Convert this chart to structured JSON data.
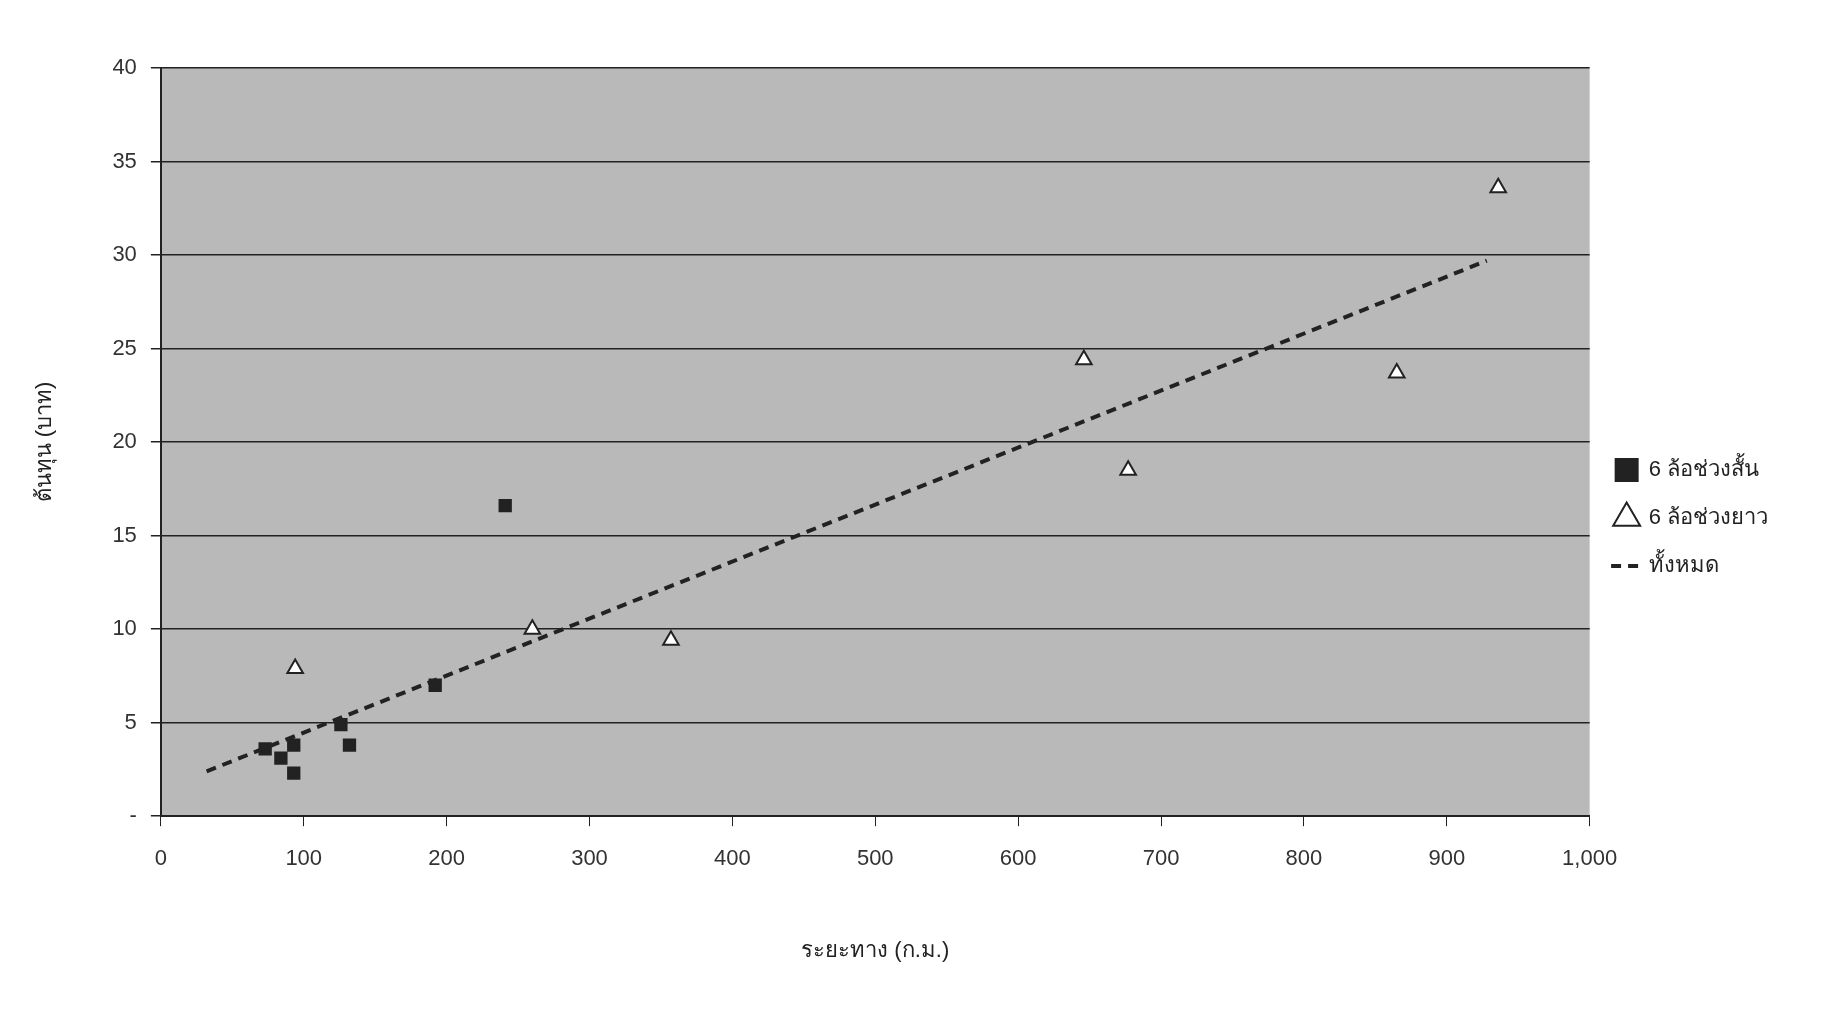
{
  "chart_data": {
    "type": "scatter",
    "xlabel": "ระยะทาง (ก.ม.)",
    "ylabel": "ต้นทุน (บาท)",
    "xlim": [
      0,
      1000
    ],
    "xticks": [
      0,
      100,
      200,
      300,
      400,
      500,
      600,
      700,
      800,
      900,
      {
        "value": 1000,
        "label": "1,000"
      }
    ],
    "ylim": [
      0,
      40
    ],
    "yticks": [
      {
        "value": 0,
        "label": "-"
      },
      5,
      10,
      15,
      20,
      25,
      30,
      35,
      40
    ],
    "grid": "y",
    "legend": "right",
    "series": [
      {
        "name": "6 ล้อช่วงสั้น",
        "color": "#222222",
        "marker": "square",
        "x": [
          73,
          84,
          93,
          93,
          126,
          132,
          192,
          241
        ],
        "values": [
          3.6,
          3.1,
          3.8,
          2.3,
          4.9,
          3.8,
          7.0,
          16.6
        ]
      },
      {
        "name": "6 ล้อช่วงยาว",
        "color": "#222222",
        "marker": "triangle",
        "x": [
          94,
          260,
          357,
          646,
          677,
          865,
          936
        ],
        "values": [
          7.9,
          10.0,
          9.4,
          24.4,
          18.5,
          23.7,
          33.6
        ]
      },
      {
        "name": "ทั้งหมด",
        "type": "line",
        "color": "#222222",
        "marker": "none",
        "line_style": "dashed",
        "x": [
          32,
          928
        ],
        "values": [
          2.4,
          29.7
        ]
      }
    ]
  }
}
